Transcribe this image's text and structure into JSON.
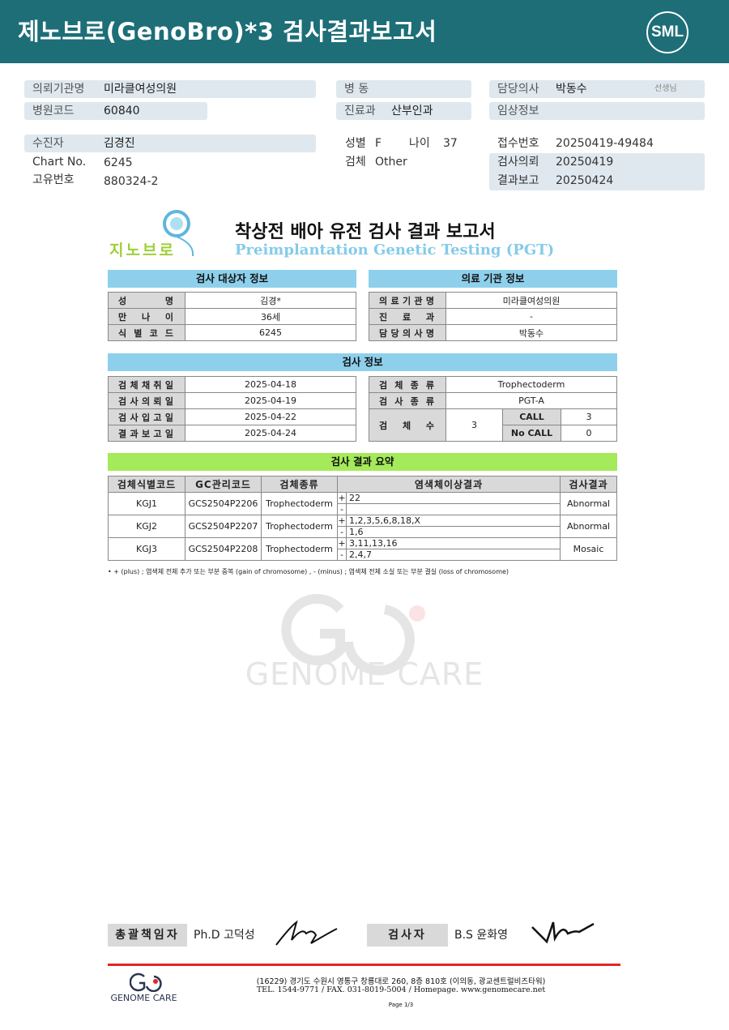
{
  "header": {
    "title": "제노브로(GenoBro)*3 검사결과보고서",
    "logo": "SML"
  },
  "info": {
    "institution": {
      "label": "의뢰기관명",
      "value": "미라클여성의원"
    },
    "hospital_code": {
      "label": "병원코드",
      "value": "60840"
    },
    "ward": {
      "label": "병 동",
      "value": ""
    },
    "department": {
      "label": "진료과",
      "value": "산부인과"
    },
    "doctor": {
      "label": "담당의사",
      "value": "박동수",
      "suffix": "선생님"
    },
    "clinical": {
      "label": "임상정보",
      "value": ""
    },
    "patient": {
      "label": "수진자",
      "value": "김경진"
    },
    "chart_no": {
      "label": "Chart No.",
      "value": "6245"
    },
    "unique_no": {
      "label": "고유번호",
      "value": "880324-2"
    },
    "sex": {
      "label": "성별",
      "value": "F"
    },
    "age": {
      "label": "나이",
      "value": "37"
    },
    "specimen": {
      "label": "검체",
      "value": "Other"
    },
    "receipt_no": {
      "label": "접수번호",
      "value": "20250419-49484"
    },
    "request_date": {
      "label": "검사의뢰",
      "value": "20250419"
    },
    "report_date": {
      "label": "결과보고",
      "value": "20250424"
    }
  },
  "report": {
    "logo_text": "지노브로",
    "title": "착상전 배아 유전 검사 결과 보고서",
    "subtitle": "Preimplantation Genetic Testing (PGT)",
    "subject": {
      "heading": "검사 대상자 정보",
      "rows": [
        [
          "성명",
          "김경*"
        ],
        [
          "만나이",
          "36세"
        ],
        [
          "식별코드",
          "6245"
        ]
      ]
    },
    "institution": {
      "heading": "의료 기관 정보",
      "rows": [
        [
          "의료기관명",
          "미라클여성의원"
        ],
        [
          "진료과",
          "-"
        ],
        [
          "담당의사명",
          "박동수"
        ]
      ]
    },
    "test": {
      "heading": "검사 정보",
      "left": [
        [
          "검체채취일",
          "2025-04-18"
        ],
        [
          "검사의뢰일",
          "2025-04-19"
        ],
        [
          "검사입고일",
          "2025-04-22"
        ],
        [
          "결과보고일",
          "2025-04-24"
        ]
      ],
      "specimen_type": [
        "검체종류",
        "Trophectoderm"
      ],
      "test_type": [
        "검사종류",
        "PGT-A"
      ],
      "count": {
        "label": "검체수",
        "value": "3",
        "call_label": "CALL",
        "call": "3",
        "nocall_label": "No CALL",
        "nocall": "0"
      }
    },
    "summary": {
      "heading": "검사 결과 요약",
      "columns": [
        "검체식별코드",
        "GC관리코드",
        "검체종류",
        "염색체이상결과",
        "검사결과"
      ],
      "rows": [
        {
          "id": "KGJ1",
          "gc": "GCS2504P2206",
          "type": "Trophectoderm",
          "plus": "22",
          "minus": "",
          "result": "Abnormal"
        },
        {
          "id": "KGJ2",
          "gc": "GCS2504P2207",
          "type": "Trophectoderm",
          "plus": "1,2,3,5,6,8,18,X",
          "minus": "1,6",
          "result": "Abnormal"
        },
        {
          "id": "KGJ3",
          "gc": "GCS2504P2208",
          "type": "Trophectoderm",
          "plus": "3,11,13,16",
          "minus": "2,4,7",
          "result": "Mosaic"
        }
      ],
      "plus_sign": "+",
      "minus_sign": "-",
      "note": "• + (plus) ; 염색체 전체 추가 또는 부분 중복 (gain of chromosome) , - (minus) ; 염색체 전체 소실 또는 부분 결실 (loss of chromosome)"
    },
    "watermark": "GENOME CARE"
  },
  "signatures": {
    "director_label": "총괄책임자",
    "director": "Ph.D 고덕성",
    "tester_label": "검사자",
    "tester": "B.S 윤화영"
  },
  "footer": {
    "logo": "GENOME CARE",
    "address": "(16229) 경기도 수원시 영통구 창룡대로 260, 8층 810호 (이의동, 광교센트럴비즈타워)",
    "contact": "TEL. 1544-9771 / FAX. 031-8019-5004 / Homepage. www.genomecare.net",
    "page": "Page 1/3"
  },
  "colors": {
    "header": "#1d6e77",
    "section_blue": "#8ed0ec",
    "section_green": "#a5ea5a",
    "footer_line": "#e32626"
  }
}
